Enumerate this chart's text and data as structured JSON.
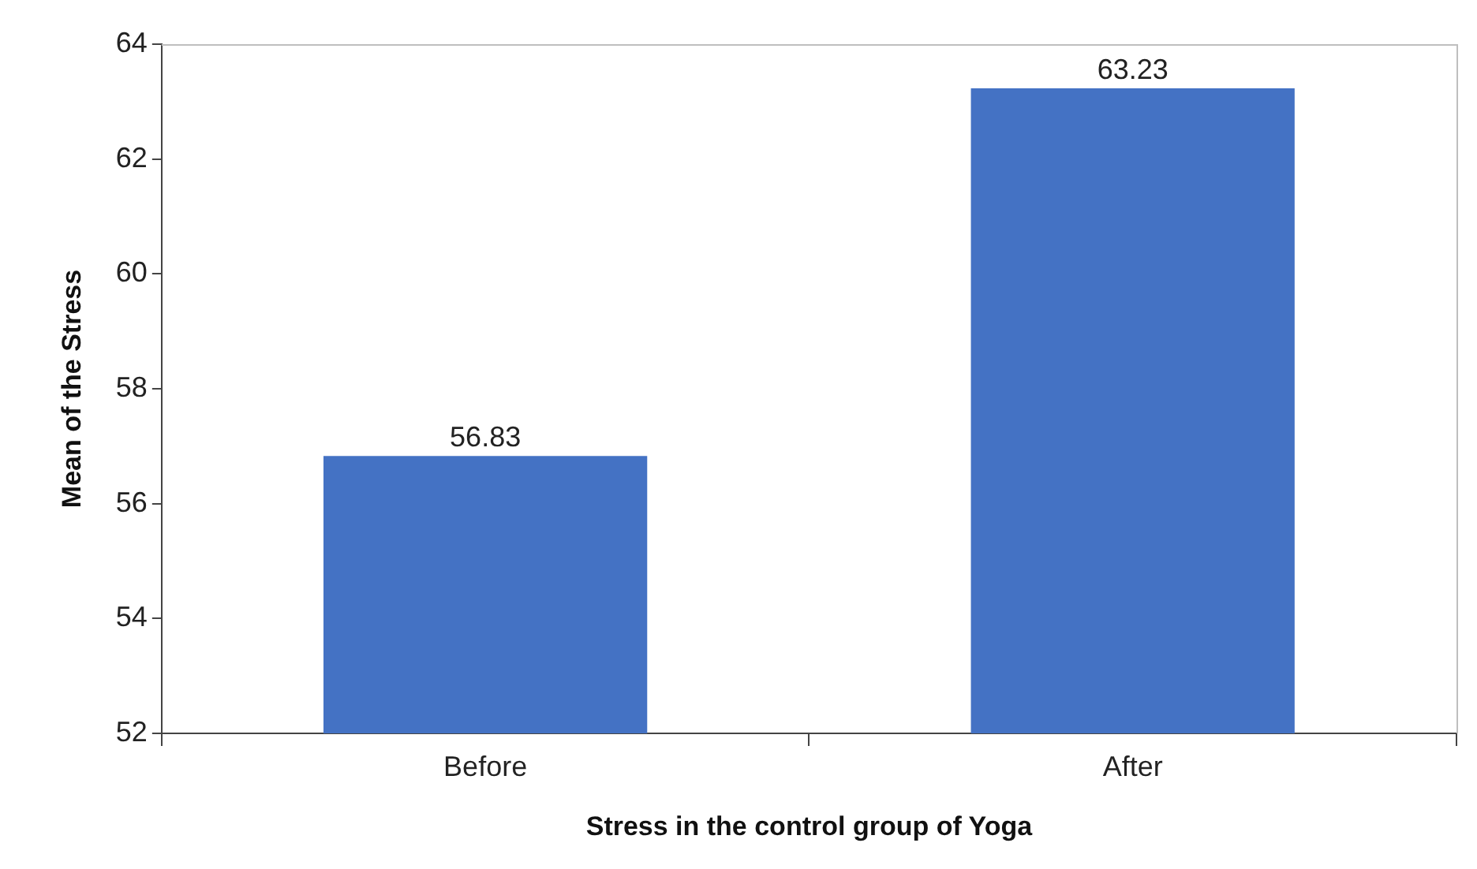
{
  "chart_data": {
    "type": "bar",
    "xlabel": "Stress in the control group of Yoga",
    "ylabel": "Mean of the Stress",
    "categories": [
      "Before",
      "After"
    ],
    "values": [
      56.83,
      63.23
    ],
    "color": "#4472c4",
    "ylim": [
      52,
      64
    ],
    "yticks": [
      52,
      54,
      56,
      58,
      60,
      62,
      64
    ],
    "grid": false,
    "data_labels": true
  }
}
